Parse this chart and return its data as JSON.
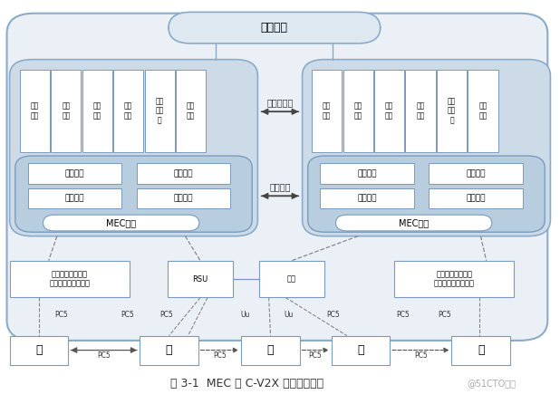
{
  "title": "图 3-1  MEC 与 C-V2X 融合场景架构",
  "watermark": "@51CTO博客",
  "bg_color": "#ffffff",
  "app_items_left": [
    "高清\n视频",
    "高精\n地图",
    "自动\n驾驶",
    "远程\n驾驶",
    "多媒\n体应\n用",
    "事件\n决策"
  ],
  "app_items_right": [
    "高清\n视频",
    "高精\n地图",
    "自动\n驾驶",
    "远程\n驾驶",
    "多媒\n体应\n用",
    "事件\n决策"
  ],
  "mec_functions": [
    [
      "数据存储",
      "运算加速"
    ],
    [
      "业务回传",
      "数据处理"
    ]
  ],
  "mec_label": "MEC平台",
  "cloud_label": "云控中心",
  "edge_app_label": "边缘云应用",
  "biz_switch_label": "业务切换"
}
